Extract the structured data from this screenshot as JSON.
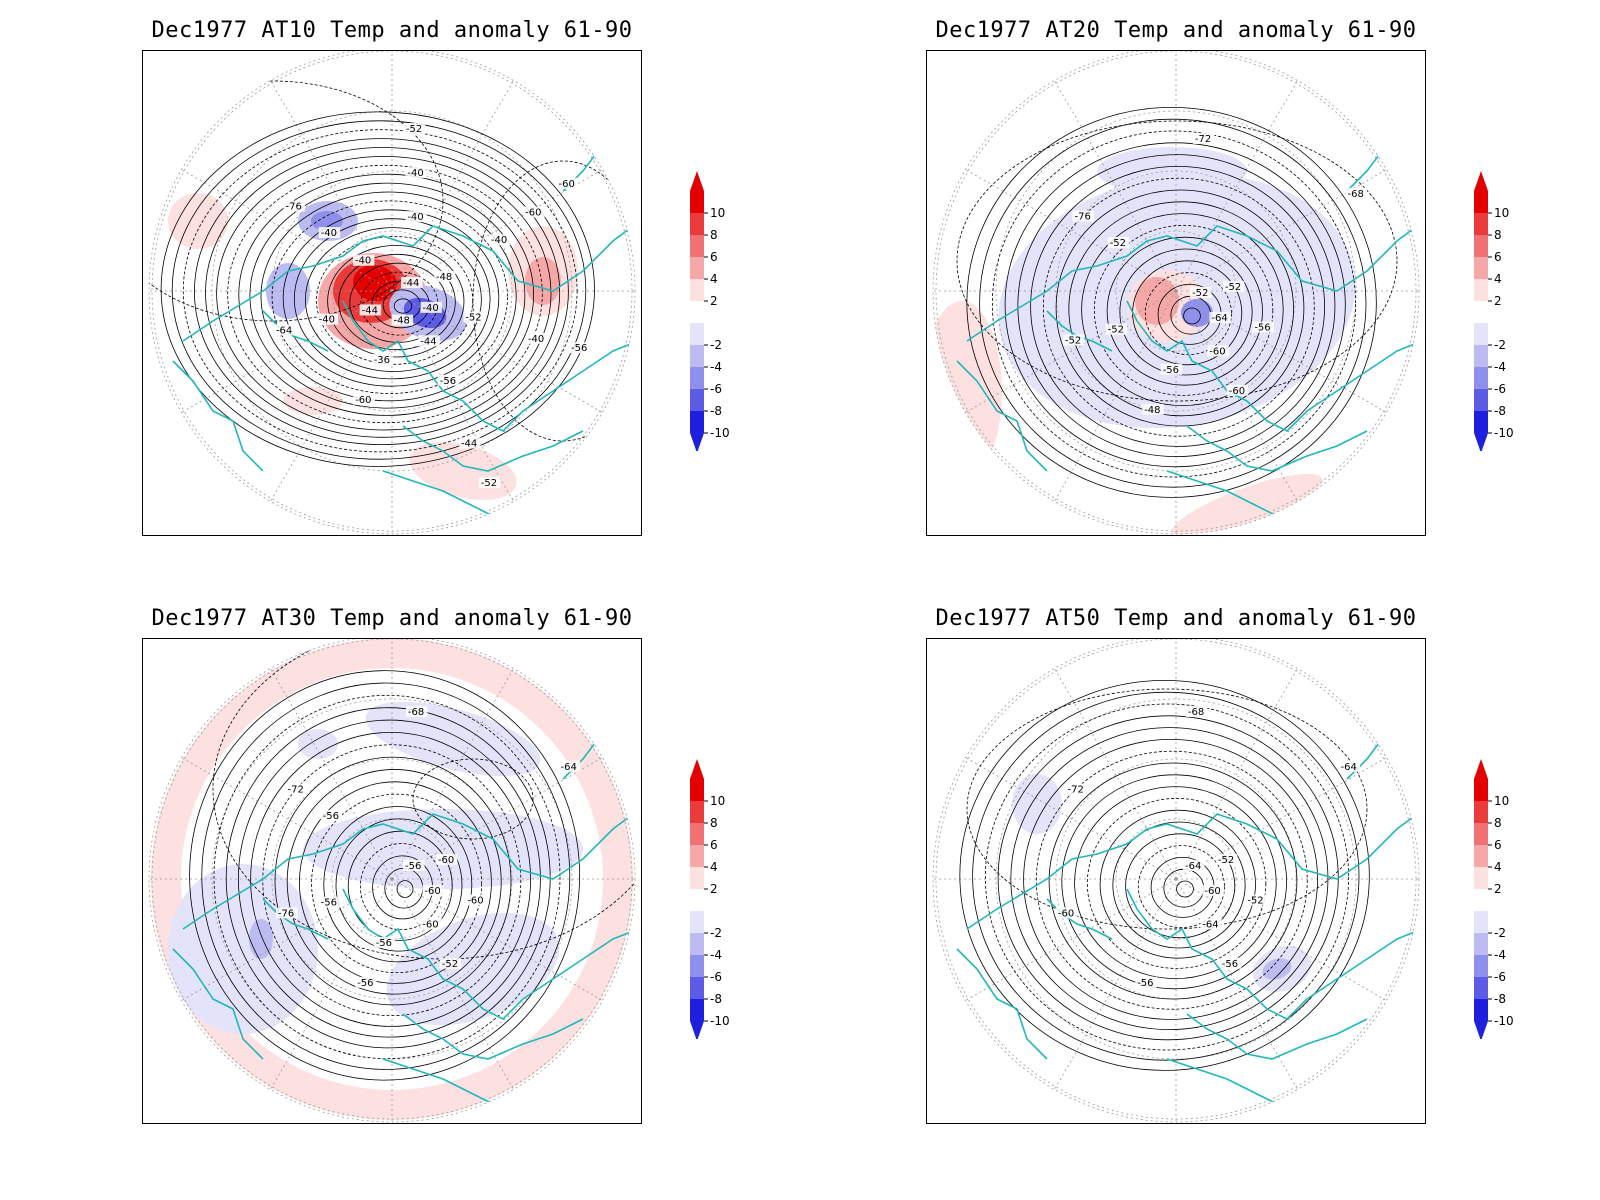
{
  "colors": {
    "coast": "#20b8b8",
    "contour": "#000000",
    "grid": "#9a9a9a",
    "anom_pos": [
      "#fde0e0",
      "#f6a8a8",
      "#f07272",
      "#ea3b3b",
      "#e50000"
    ],
    "anom_neg": [
      "#e3e3fa",
      "#bcbcf3",
      "#8f8fec",
      "#5c5ce6",
      "#1f1fe0"
    ]
  },
  "colorbar": {
    "labels": [
      "10",
      "8",
      "6",
      "4",
      "2",
      "-2",
      "-4",
      "-6",
      "-8",
      "-10"
    ]
  },
  "panels": [
    {
      "title": "Dec1977 AT10 Temp and anomaly 61-90",
      "contour_labels": [
        "-44",
        "-48",
        "-52",
        "-56",
        "-60",
        "-64",
        "-76",
        "-52",
        "-60",
        "-40",
        "-44",
        "-36",
        "-40",
        "-40",
        "-40",
        "-60",
        "-56",
        "-52",
        "-48",
        "-44",
        "-40",
        "-40",
        "-40",
        "-40",
        "-44"
      ]
    },
    {
      "title": "Dec1977 AT20 Temp and anomaly 61-90",
      "contour_labels": [
        "-52",
        "-52",
        "-56",
        "-60",
        "-48",
        "-52",
        "-76",
        "-72",
        "-68",
        "-64",
        "-60",
        "-56",
        "-52",
        "-52"
      ]
    },
    {
      "title": "Dec1977 AT30 Temp and anomaly 61-90",
      "contour_labels": [
        "-56",
        "-60",
        "-60",
        "-52",
        "-56",
        "-76",
        "-72",
        "-68",
        "-64",
        "-60",
        "-60",
        "-56",
        "-56",
        "-56"
      ]
    },
    {
      "title": "Dec1977 AT50 Temp and anomaly 61-90",
      "contour_labels": [
        "-64",
        "-52",
        "-52",
        "-56",
        "-56",
        "-60",
        "-72",
        "-68",
        "-64",
        "-60",
        "-64"
      ]
    }
  ]
}
